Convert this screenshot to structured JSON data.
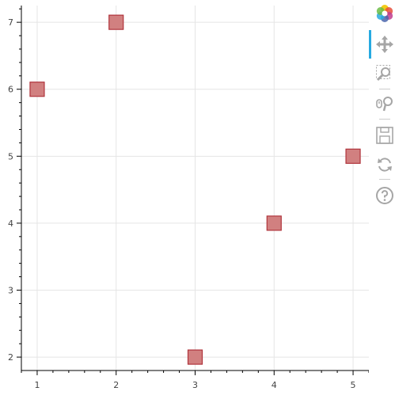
{
  "chart_data": {
    "type": "scatter",
    "marker": "square",
    "x": [
      1,
      2,
      3,
      4,
      5
    ],
    "y": [
      6,
      7,
      2,
      4,
      5
    ],
    "xlim": [
      0.8,
      5.2
    ],
    "ylim": [
      1.8,
      7.25
    ],
    "x_ticks": [
      1,
      2,
      3,
      4,
      5
    ],
    "y_ticks": [
      2,
      3,
      4,
      5,
      6,
      7
    ],
    "grid": true,
    "title": "",
    "xlabel": "",
    "ylabel": "",
    "marker_fill": "#d18080",
    "marker_stroke": "#b0343c",
    "grid_color": "#e5e5e5",
    "axis_color": "#000000"
  },
  "toolbar": {
    "tools": [
      {
        "name": "bokeh-logo-icon",
        "interactable": false
      },
      {
        "name": "pan-tool-icon",
        "interactable": true,
        "active": true
      },
      {
        "name": "box-zoom-tool-icon",
        "interactable": true
      },
      {
        "name": "wheel-zoom-tool-icon",
        "interactable": true
      },
      {
        "name": "save-tool-icon",
        "interactable": true
      },
      {
        "name": "reset-tool-icon",
        "interactable": true
      },
      {
        "name": "help-tool-icon",
        "interactable": true
      }
    ],
    "active_color": "#26aae1"
  }
}
